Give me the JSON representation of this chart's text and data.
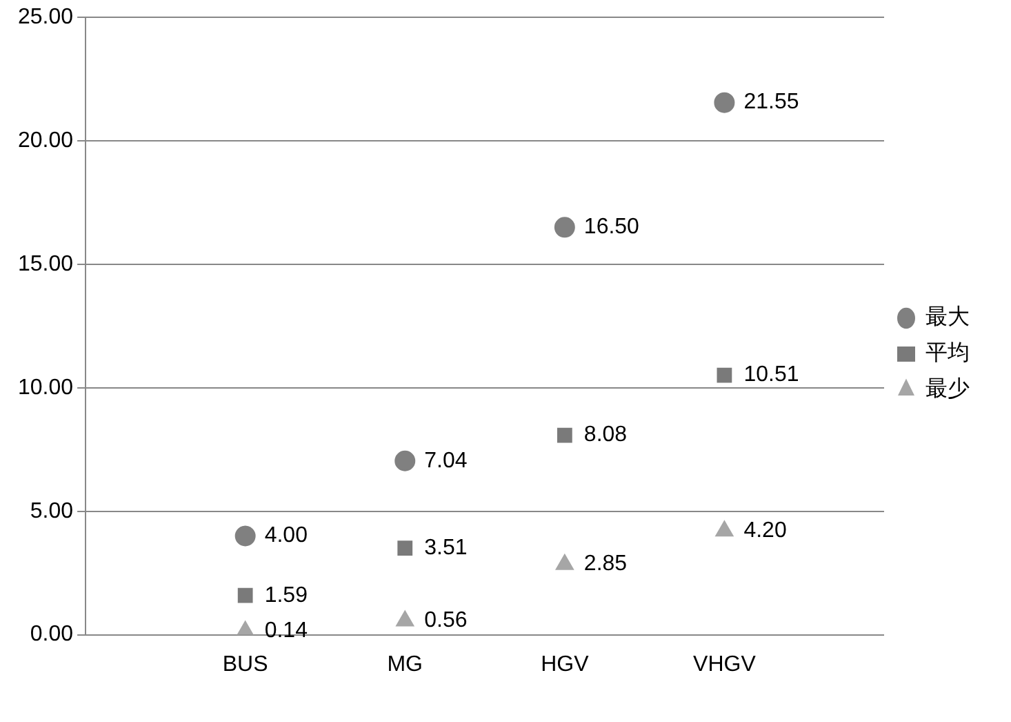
{
  "chart_data": {
    "type": "scatter",
    "categories": [
      null,
      "BUS",
      "MG",
      "HGV",
      "VHGV",
      null
    ],
    "series": [
      {
        "name": "最大",
        "color": "#808080",
        "marker": "circle",
        "values": [
          null,
          4.0,
          7.04,
          16.5,
          21.55,
          null
        ],
        "value_labels": [
          null,
          "4.00",
          "7.04",
          "16.50",
          "21.55",
          null
        ]
      },
      {
        "name": "平均",
        "color": "#7a7a7a",
        "marker": "square",
        "values": [
          null,
          1.59,
          3.51,
          8.08,
          10.51,
          null
        ],
        "value_labels": [
          null,
          "1.59",
          "3.51",
          "8.08",
          "10.51",
          null
        ]
      },
      {
        "name": "最少",
        "color": "#a6a6a6",
        "marker": "triangle",
        "values": [
          null,
          0.14,
          0.56,
          2.85,
          4.2,
          null
        ],
        "value_labels": [
          null,
          "0.14",
          "0.56",
          "2.85",
          "4.20",
          null
        ]
      }
    ],
    "ylim": [
      0,
      25
    ],
    "yticks": [
      {
        "value": 0,
        "label": "0.00"
      },
      {
        "value": 5,
        "label": "5.00"
      },
      {
        "value": 10,
        "label": "10.00"
      },
      {
        "value": 15,
        "label": "15.00"
      },
      {
        "value": 20,
        "label": "20.00"
      },
      {
        "value": 25,
        "label": "25.00"
      }
    ],
    "grid": "y",
    "legend": "right"
  }
}
